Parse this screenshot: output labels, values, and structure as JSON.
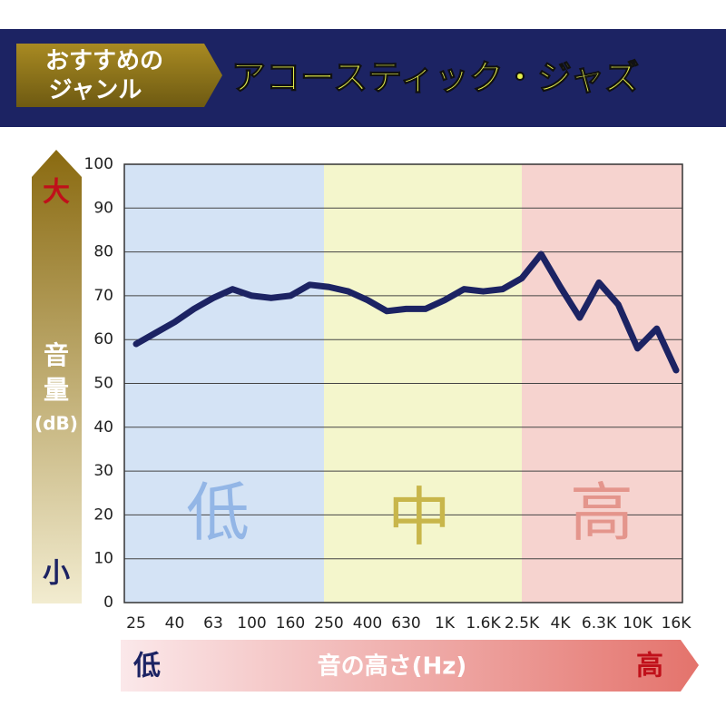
{
  "header": {
    "badge": [
      "おすすめの",
      "ジャンル"
    ],
    "title": "アコースティック・ジャズ"
  },
  "chart_data": {
    "type": "line",
    "categories": [
      "25",
      null,
      "40",
      null,
      "63",
      null,
      "100",
      null,
      "160",
      null,
      "250",
      null,
      "400",
      null,
      "630",
      null,
      "1K",
      null,
      "1.6K",
      null,
      "2.5K",
      null,
      "4K",
      null,
      "6.3K",
      null,
      "10K",
      null,
      "16K"
    ],
    "series": [
      {
        "color": "#1c2363",
        "values": [
          59,
          61.5,
          64,
          67,
          69.5,
          71.5,
          70,
          69.5,
          70,
          72.5,
          72,
          71,
          69,
          66.5,
          67,
          67,
          69,
          71.5,
          71,
          71.5,
          74,
          79.5,
          72,
          65,
          73,
          68,
          58,
          62.5,
          53
        ]
      }
    ],
    "ylim": [
      0,
      100
    ],
    "yticks": [
      0,
      10,
      20,
      30,
      40,
      50,
      60,
      70,
      80,
      90,
      100
    ],
    "grid": true,
    "bands": [
      "低",
      "中",
      "高"
    ],
    "ylabel": [
      "音",
      "量",
      "(dB)"
    ],
    "y_ends": [
      "大",
      "小"
    ],
    "xlabel": "音の高さ(Hz)",
    "x_ends": [
      "低",
      "高"
    ]
  }
}
